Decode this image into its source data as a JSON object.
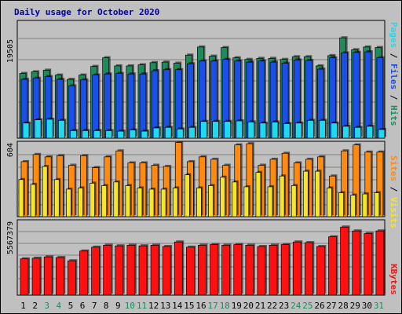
{
  "title": "Daily usage for October 2020",
  "colors": {
    "hits": "#1e8c5a",
    "files": "#1a4fe8",
    "pages": "#20d8f0",
    "visits": "#f5e62a",
    "sites": "#ff8a10",
    "kbytes": "#ff1010",
    "title": "#0000a0",
    "weekend_day": "#1e8c5a",
    "panel_bg": "#c0c0c0"
  },
  "chart_data": [
    {
      "type": "bar",
      "panel": "hits-files-pages",
      "max_label": "19505",
      "ylim": [
        0,
        19505
      ],
      "legend": [
        "Pages",
        "/",
        "Files",
        "/",
        "Hits"
      ],
      "categories": [
        "1",
        "2",
        "3",
        "4",
        "5",
        "6",
        "7",
        "8",
        "9",
        "10",
        "11",
        "12",
        "13",
        "14",
        "15",
        "16",
        "17",
        "18",
        "19",
        "20",
        "21",
        "22",
        "23",
        "24",
        "25",
        "26",
        "27",
        "28",
        "29",
        "30",
        "31"
      ],
      "series": [
        {
          "name": "Hits",
          "values": [
            12000,
            12300,
            12600,
            11700,
            10900,
            11700,
            13300,
            14900,
            13400,
            13400,
            13600,
            14000,
            14100,
            13900,
            15400,
            16900,
            15200,
            16800,
            14900,
            14600,
            14800,
            14800,
            14600,
            15100,
            15100,
            13400,
            15300,
            18600,
            16400,
            16900,
            16800
          ]
        },
        {
          "name": "Files",
          "values": [
            10900,
            11100,
            11400,
            10900,
            9700,
            10800,
            11700,
            11900,
            12000,
            11900,
            11900,
            12500,
            12700,
            12700,
            13800,
            14300,
            14300,
            14600,
            14300,
            14100,
            14300,
            14100,
            13900,
            14500,
            14400,
            12800,
            14900,
            15800,
            15900,
            16000,
            14900
          ]
        },
        {
          "name": "Pages",
          "values": [
            2800,
            3400,
            3500,
            3300,
            1400,
            1400,
            1400,
            1400,
            1300,
            1500,
            1300,
            1900,
            2000,
            1700,
            2000,
            3100,
            3100,
            3100,
            3200,
            3000,
            2800,
            3000,
            2700,
            2800,
            3300,
            3300,
            2800,
            2200,
            2000,
            2200,
            1600
          ]
        }
      ]
    },
    {
      "type": "bar",
      "panel": "visits-sites",
      "max_label": "604",
      "ylim": [
        0,
        604
      ],
      "legend": [
        "Sites",
        "/",
        "Visits"
      ],
      "categories": [
        "1",
        "2",
        "3",
        "4",
        "5",
        "6",
        "7",
        "8",
        "9",
        "10",
        "11",
        "12",
        "13",
        "14",
        "15",
        "16",
        "17",
        "18",
        "19",
        "20",
        "21",
        "22",
        "23",
        "24",
        "25",
        "26",
        "27",
        "28",
        "29",
        "30",
        "31"
      ],
      "series": [
        {
          "name": "Sites",
          "values": [
            460,
            520,
            500,
            510,
            430,
            510,
            410,
            500,
            550,
            450,
            450,
            430,
            420,
            620,
            460,
            500,
            480,
            430,
            600,
            610,
            430,
            480,
            530,
            450,
            480,
            500,
            340,
            550,
            600,
            540,
            540
          ]
        },
        {
          "name": "Visits",
          "values": [
            310,
            270,
            420,
            310,
            230,
            240,
            280,
            260,
            290,
            260,
            240,
            230,
            230,
            240,
            350,
            240,
            260,
            330,
            290,
            250,
            370,
            250,
            340,
            260,
            380,
            380,
            240,
            200,
            180,
            190,
            200
          ]
        }
      ]
    },
    {
      "type": "bar",
      "panel": "kbytes",
      "max_label": "5567379",
      "ylim": [
        0,
        5567379
      ],
      "legend": [
        "KBytes"
      ],
      "categories": [
        "1",
        "2",
        "3",
        "4",
        "5",
        "6",
        "7",
        "8",
        "9",
        "10",
        "11",
        "12",
        "13",
        "14",
        "15",
        "16",
        "17",
        "18",
        "19",
        "20",
        "21",
        "22",
        "23",
        "24",
        "25",
        "26",
        "27",
        "28",
        "29",
        "30",
        "31"
      ],
      "series": [
        {
          "name": "KBytes",
          "values": [
            2800000,
            2850000,
            2950000,
            2900000,
            2650000,
            3400000,
            3700000,
            3850000,
            3800000,
            3850000,
            3800000,
            3850000,
            3750000,
            4100000,
            3700000,
            3850000,
            3900000,
            3850000,
            3900000,
            3850000,
            3750000,
            3850000,
            3900000,
            4100000,
            4050000,
            3750000,
            4500000,
            5250000,
            4950000,
            4750000,
            4950000
          ]
        }
      ]
    }
  ],
  "x_axis": {
    "labels": [
      "1",
      "2",
      "3",
      "4",
      "5",
      "6",
      "7",
      "8",
      "9",
      "10",
      "11",
      "12",
      "13",
      "14",
      "15",
      "16",
      "17",
      "18",
      "19",
      "20",
      "21",
      "22",
      "23",
      "24",
      "25",
      "26",
      "27",
      "28",
      "29",
      "30",
      "31"
    ],
    "weekend_days": [
      3,
      4,
      10,
      11,
      17,
      18,
      24,
      25,
      31
    ]
  }
}
